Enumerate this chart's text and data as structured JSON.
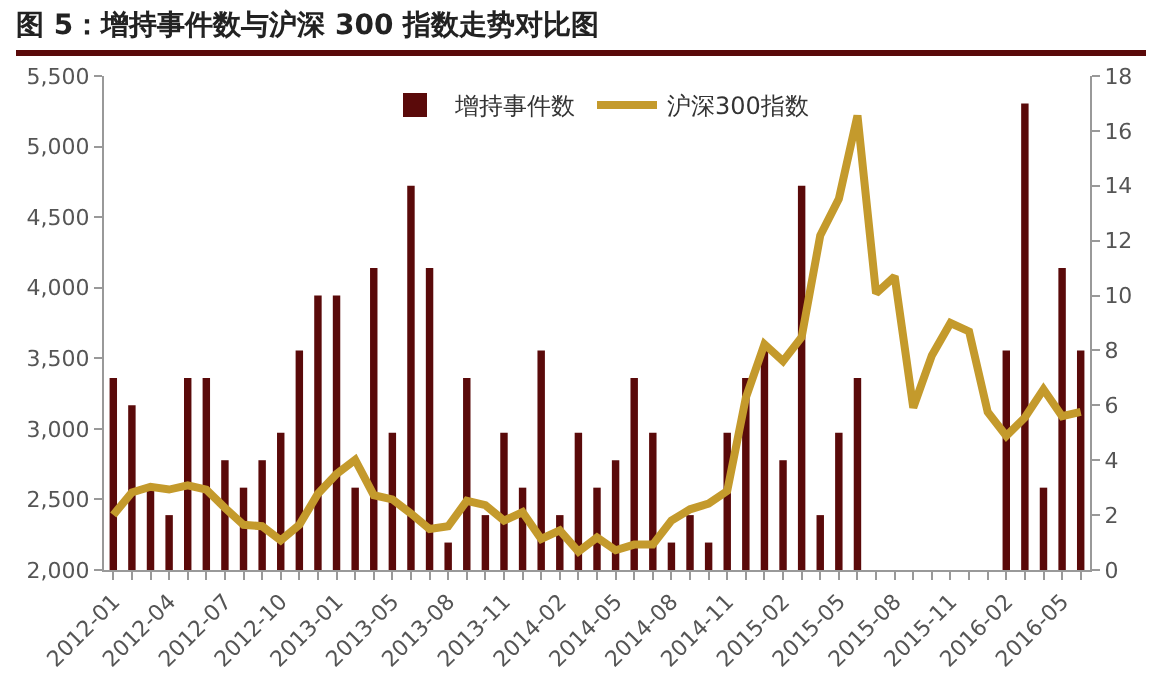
{
  "chart_data": {
    "type": "bar",
    "title": "图 5：增持事件数与沪深 300 指数走势对比图",
    "categories": [
      "2012-01",
      null,
      null,
      "2012-04",
      null,
      null,
      "2012-07",
      null,
      null,
      "2012-10",
      null,
      null,
      "2013-01",
      null,
      null,
      "2013-05",
      null,
      null,
      "2013-08",
      null,
      null,
      "2013-11",
      null,
      null,
      "2014-02",
      null,
      null,
      "2014-05",
      null,
      null,
      "2014-08",
      null,
      null,
      "2014-11",
      null,
      null,
      "2015-02",
      null,
      null,
      "2015-05",
      null,
      null,
      "2015-08",
      null,
      null,
      "2015-11",
      null,
      null,
      "2016-02",
      null,
      null,
      "2016-05",
      null
    ],
    "series": [
      {
        "name": "增持事件数",
        "axis": "y2",
        "color": "#5a0a0a",
        "values": [
          7,
          6,
          3,
          2,
          7,
          7,
          4,
          3,
          4,
          5,
          8,
          10,
          10,
          3,
          11,
          5,
          14,
          11,
          1,
          7,
          2,
          5,
          3,
          8,
          2,
          5,
          3,
          4,
          7,
          5,
          1,
          2,
          1,
          5,
          7,
          8,
          4,
          14,
          2,
          5,
          7,
          0,
          0,
          0,
          0,
          0,
          0,
          0,
          8,
          17,
          3,
          11,
          8
        ]
      },
      {
        "name": "沪深300指数",
        "type": "line",
        "axis": "y",
        "color": "#c49a2c",
        "values": [
          2390,
          2550,
          2590,
          2570,
          2600,
          2570,
          2440,
          2320,
          2310,
          2210,
          2320,
          2540,
          2680,
          2780,
          2530,
          2500,
          2400,
          2290,
          2310,
          2490,
          2460,
          2350,
          2410,
          2220,
          2280,
          2130,
          2230,
          2140,
          2180,
          2180,
          2350,
          2430,
          2470,
          2560,
          3220,
          3600,
          3480,
          3650,
          4370,
          4630,
          5220,
          3960,
          4080,
          3150,
          3520,
          3750,
          3690,
          3120,
          2950,
          3080,
          3280,
          3090,
          3120
        ]
      }
    ],
    "ylim": [
      2000,
      5500
    ],
    "yticks": [
      {
        "value": 2000,
        "label": "2,000"
      },
      {
        "value": 2500,
        "label": "2,500"
      },
      {
        "value": 3000,
        "label": "3,000"
      },
      {
        "value": 3500,
        "label": "3,500"
      },
      {
        "value": 4000,
        "label": "4,000"
      },
      {
        "value": 4500,
        "label": "4,500"
      },
      {
        "value": 5000,
        "label": "5,000"
      },
      {
        "value": 5500,
        "label": "5,500"
      }
    ],
    "y2lim": [
      0,
      18
    ],
    "y2ticks": [
      0,
      2,
      4,
      6,
      8,
      10,
      12,
      14,
      16,
      18
    ],
    "grid": false,
    "legend": "top",
    "marker": "none",
    "line_style": "solid"
  }
}
